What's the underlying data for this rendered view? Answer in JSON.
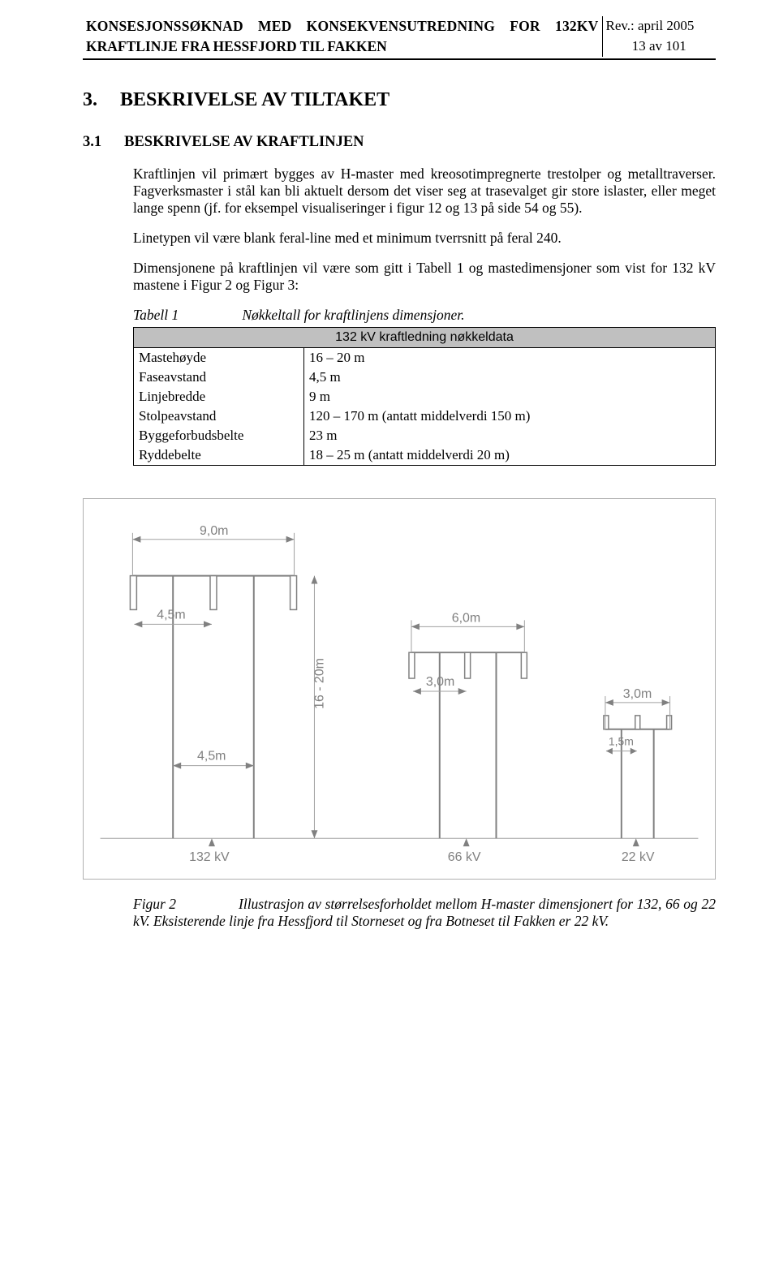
{
  "header": {
    "title_line1": "KONSESJONSSØKNAD MED KONSEKVENSUTREDNING FOR 132KV",
    "title_line2": "KRAFTLINJE FRA HESSFJORD TIL FAKKEN",
    "revision": "Rev.: april 2005",
    "page_of": "13 av 101"
  },
  "section": {
    "num": "3.",
    "title": "BESKRIVELSE AV TILTAKET",
    "sub_num": "3.1",
    "sub_title": "BESKRIVELSE AV KRAFTLINJEN"
  },
  "paragraphs": {
    "p1": "Kraftlinjen vil primært bygges av H-master med kreosotimpregnerte trestolper og metalltraverser. Fagverksmaster i stål kan bli aktuelt dersom det viser seg at trasevalget gir store islaster, eller meget lange spenn (jf. for eksempel visualiseringer i figur 12 og 13 på side 54 og 55).",
    "p2": "Linetypen vil være blank feral-line med et minimum tverrsnitt på feral 240.",
    "p3": "Dimensjonene på kraftlinjen vil være som gitt i Tabell 1 og mastedimensjoner som vist for 132 kV mastene i Figur 2 og Figur 3:"
  },
  "table1": {
    "caption_label": "Tabell 1",
    "caption_text": "Nøkkeltall for kraftlinjens dimensjoner.",
    "header": "132 kV kraftledning nøkkeldata",
    "rows": [
      {
        "k": "Mastehøyde",
        "v": "16 – 20 m"
      },
      {
        "k": "Faseavstand",
        "v": "4,5 m"
      },
      {
        "k": "Linjebredde",
        "v": "9 m"
      },
      {
        "k": "Stolpeavstand",
        "v": "120 – 170 m  (antatt middelverdi 150 m)"
      },
      {
        "k": "Byggeforbudsbelte",
        "v": "23 m"
      },
      {
        "k": "Ryddebelte",
        "v": "18 – 25 m  (antatt middelverdi 20 m)"
      }
    ]
  },
  "figure2": {
    "caption_label": "Figur 2",
    "caption_text": "Illustrasjon av størrelsesforholdet mellom H-master dimensjonert for 132, 66 og 22 kV. Eksisterende linje fra Hessfjord til Storneset og fra Botneset til Fakken er 22 kV.",
    "labels": {
      "w_132": "9,0m",
      "phase_132": "4,5m",
      "pole_132": "4,5m",
      "height": "16 - 20m",
      "kv132": "132 kV",
      "w_66": "6,0m",
      "phase_66": "3,0m",
      "kv66": "66 kV",
      "w_22": "3,0m",
      "phase_22": "1,5m",
      "kv22": "22 kV"
    },
    "colors": {
      "line": "#808080",
      "light": "#a0a0a0",
      "text": "#808080",
      "bg": "#ffffff",
      "border": "#b0b0b0"
    }
  }
}
